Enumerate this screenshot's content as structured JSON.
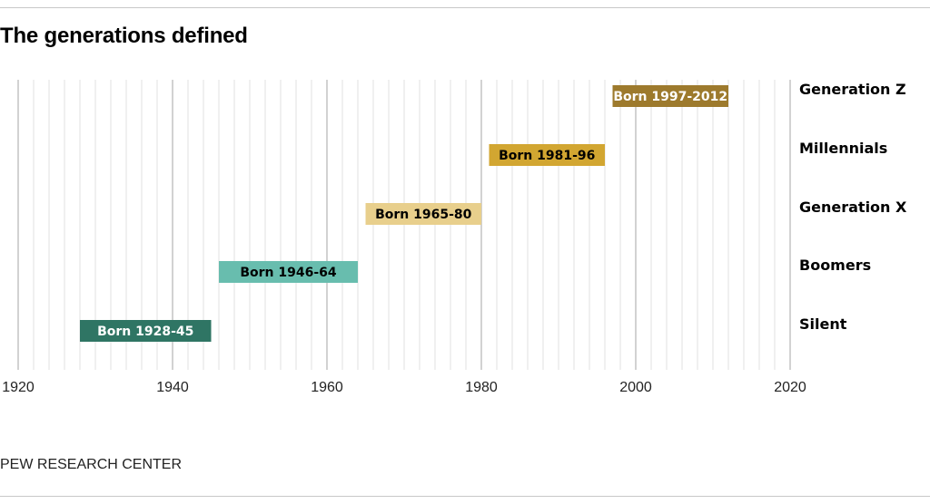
{
  "title": "The generations defined",
  "source": "PEW RESEARCH CENTER",
  "colors": {
    "minor_grid": "#e2e2e2",
    "major_grid": "#a6a6a6",
    "axis": "#999999"
  },
  "chart_data": {
    "type": "bar",
    "orientation": "horizontal-range",
    "title": "The generations defined",
    "xlim": [
      1920,
      2020
    ],
    "x_ticks": [
      1920,
      1940,
      1960,
      1980,
      2000,
      2020
    ],
    "minor_grid_step": 2,
    "grid": true,
    "series": [
      {
        "name": "Generation Z",
        "start": 1997,
        "end": 2012,
        "label": "Born 1997-2012",
        "color": "#9d7a2d",
        "text_color": "#ffffff"
      },
      {
        "name": "Millennials",
        "start": 1981,
        "end": 1996,
        "label": "Born 1981-96",
        "color": "#d2a631",
        "text_color": "#000000"
      },
      {
        "name": "Generation X",
        "start": 1965,
        "end": 1980,
        "label": "Born 1965-80",
        "color": "#e8cf8c",
        "text_color": "#000000"
      },
      {
        "name": "Boomers",
        "start": 1946,
        "end": 1964,
        "label": "Born 1946-64",
        "color": "#68bdae",
        "text_color": "#000000"
      },
      {
        "name": "Silent",
        "start": 1928,
        "end": 1945,
        "label": "Born 1928-45",
        "color": "#2f7564",
        "text_color": "#ffffff"
      }
    ]
  }
}
